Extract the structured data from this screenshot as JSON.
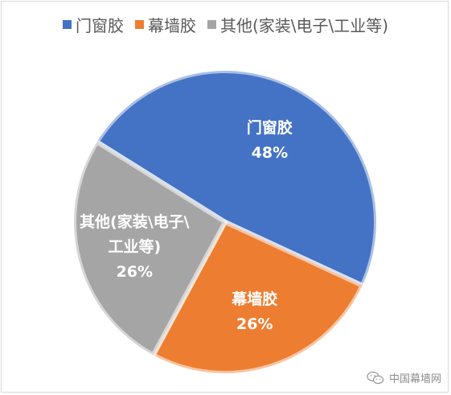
{
  "chart_data": {
    "type": "pie",
    "title": "",
    "categories": [
      "门窗胶",
      "幕墙胶",
      "其他(家装\\电子\\工业等)"
    ],
    "values": [
      48,
      26,
      26
    ],
    "unit": "%",
    "colors": [
      "#4472c4",
      "#ed7d31",
      "#a5a5a5"
    ],
    "legend_position": "top",
    "slice_labels": [
      {
        "lines": [
          "门窗胶"
        ],
        "percent": "48%"
      },
      {
        "lines": [
          "幕墙胶"
        ],
        "percent": "26%"
      },
      {
        "lines": [
          "其他(家装\\电子\\",
          "工业等)"
        ],
        "percent": "26%"
      }
    ]
  },
  "watermark": {
    "text": "中国幕墙网",
    "icon": "wechat-icon"
  }
}
